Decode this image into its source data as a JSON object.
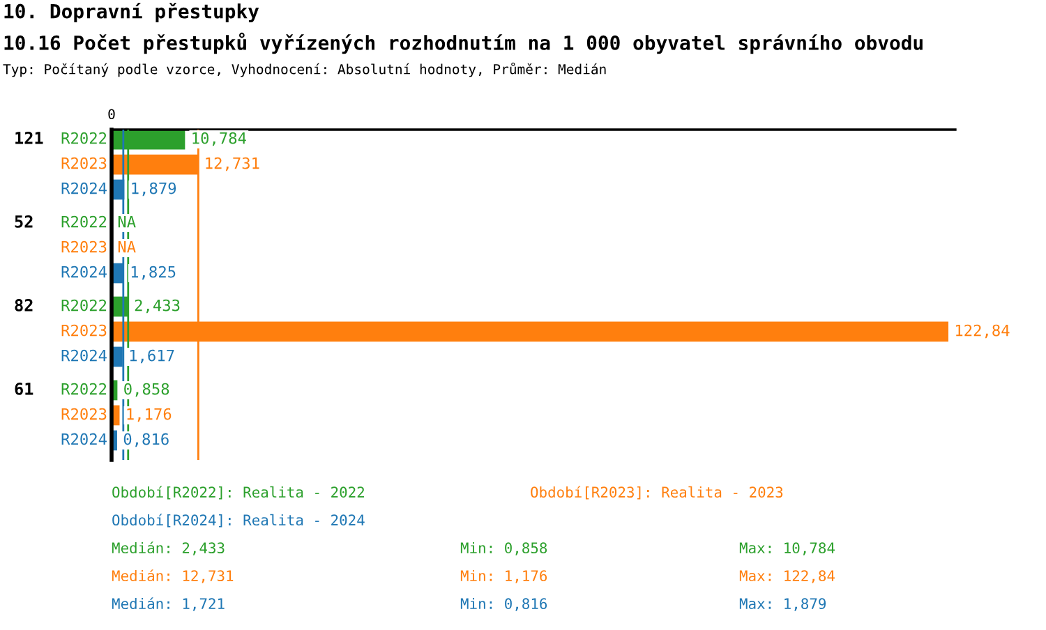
{
  "chart_data": {
    "type": "bar",
    "orientation": "horizontal",
    "title": "10. Dopravní přestupky",
    "subtitle": "10.16 Počet přestupků vyřízených rozhodnutím na 1 000 obyvatel správního obvodu\nTyp: Počítaný podle vzorce, Vyhodnocení: Absolutní hodnoty, Průměr: Medián",
    "categories": [
      "121",
      "52",
      "82",
      "61"
    ],
    "series": [
      {
        "name": "R2022",
        "color": "#2ca02c",
        "values": [
          10.784,
          null,
          2.433,
          0.858
        ],
        "value_labels": [
          "10,784",
          "NA",
          "2,433",
          "0,858"
        ]
      },
      {
        "name": "R2023",
        "color": "#ff7f0e",
        "values": [
          12.731,
          null,
          122.84,
          1.176
        ],
        "value_labels": [
          "12,731",
          "NA",
          "122,84",
          "1,176"
        ]
      },
      {
        "name": "R2024",
        "color": "#1f77b4",
        "values": [
          1.879,
          1.825,
          1.617,
          0.816
        ],
        "value_labels": [
          "1,879",
          "1,825",
          "1,617",
          "0,816"
        ]
      }
    ],
    "ref_lines": [
      {
        "axis": "x",
        "value": 2.433,
        "color": "#2ca02c"
      },
      {
        "axis": "x",
        "value": 12.731,
        "color": "#ff7f0e"
      },
      {
        "axis": "x",
        "value": 1.721,
        "color": "#1f77b4"
      }
    ],
    "annotations": [
      "0",
      "Období[R2022]: Realita - 2022",
      "Období[R2023]: Realita - 2023",
      "Období[R2024]: Realita - 2024",
      "Medián: 2,433",
      "Min: 0,858",
      "Max: 10,784",
      "Medián: 12,731",
      "Min: 1,176",
      "Max: 122,84",
      "Medián: 1,721",
      "Min: 0,816",
      "Max: 1,879"
    ]
  }
}
